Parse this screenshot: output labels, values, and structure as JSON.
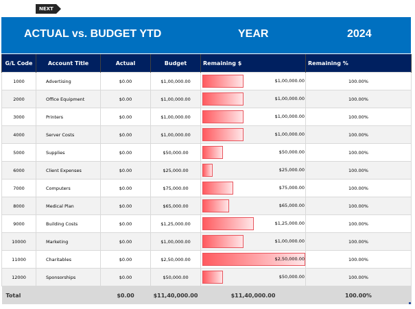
{
  "nav": {
    "next_label": "NEXT"
  },
  "banner": {
    "title": "ACTUAL vs. BUDGET YTD",
    "year_label": "YEAR",
    "year_value": "2024"
  },
  "colors": {
    "banner": "#0070c0",
    "header": "#002060",
    "bar_start": "#ff5a5f",
    "bar_end": "#ffe6e8",
    "total_row": "#d9d9d9"
  },
  "table": {
    "headers": [
      "G/L Code",
      "Account Title",
      "Actual",
      "Budget",
      "Remaining $",
      "Remaining %"
    ],
    "max_remaining": 250000,
    "rows": [
      {
        "code": "1000",
        "title": "Advertising",
        "actual": "$0.00",
        "budget": "$1,00,000.00",
        "remaining": "$1,00,000.00",
        "remaining_value": 100000,
        "pct": "100.00%"
      },
      {
        "code": "2000",
        "title": "Office Equipment",
        "actual": "$0.00",
        "budget": "$1,00,000.00",
        "remaining": "$1,00,000.00",
        "remaining_value": 100000,
        "pct": "100.00%"
      },
      {
        "code": "3000",
        "title": "Printers",
        "actual": "$0.00",
        "budget": "$1,00,000.00",
        "remaining": "$1,00,000.00",
        "remaining_value": 100000,
        "pct": "100.00%"
      },
      {
        "code": "4000",
        "title": "Server Costs",
        "actual": "$0.00",
        "budget": "$1,00,000.00",
        "remaining": "$1,00,000.00",
        "remaining_value": 100000,
        "pct": "100.00%"
      },
      {
        "code": "5000",
        "title": "Supplies",
        "actual": "$0.00",
        "budget": "$50,000.00",
        "remaining": "$50,000.00",
        "remaining_value": 50000,
        "pct": "100.00%"
      },
      {
        "code": "6000",
        "title": "Client Expenses",
        "actual": "$0.00",
        "budget": "$25,000.00",
        "remaining": "$25,000.00",
        "remaining_value": 25000,
        "pct": "100.00%"
      },
      {
        "code": "7000",
        "title": "Computers",
        "actual": "$0.00",
        "budget": "$75,000.00",
        "remaining": "$75,000.00",
        "remaining_value": 75000,
        "pct": "100.00%"
      },
      {
        "code": "8000",
        "title": "Medical Plan",
        "actual": "$0.00",
        "budget": "$65,000.00",
        "remaining": "$65,000.00",
        "remaining_value": 65000,
        "pct": "100.00%"
      },
      {
        "code": "9000",
        "title": "Building Costs",
        "actual": "$0.00",
        "budget": "$1,25,000.00",
        "remaining": "$1,25,000.00",
        "remaining_value": 125000,
        "pct": "100.00%"
      },
      {
        "code": "10000",
        "title": "Marketing",
        "actual": "$0.00",
        "budget": "$1,00,000.00",
        "remaining": "$1,00,000.00",
        "remaining_value": 100000,
        "pct": "100.00%"
      },
      {
        "code": "11000",
        "title": "Charitables",
        "actual": "$0.00",
        "budget": "$2,50,000.00",
        "remaining": "$2,50,000.00",
        "remaining_value": 250000,
        "pct": "100.00%"
      },
      {
        "code": "12000",
        "title": "Sponsorships",
        "actual": "$0.00",
        "budget": "$50,000.00",
        "remaining": "$50,000.00",
        "remaining_value": 50000,
        "pct": "100.00%"
      }
    ],
    "total": {
      "label": "Total",
      "actual": "$0.00",
      "budget": "$11,40,000.00",
      "remaining": "$11,40,000.00",
      "pct": "100.00%"
    }
  }
}
